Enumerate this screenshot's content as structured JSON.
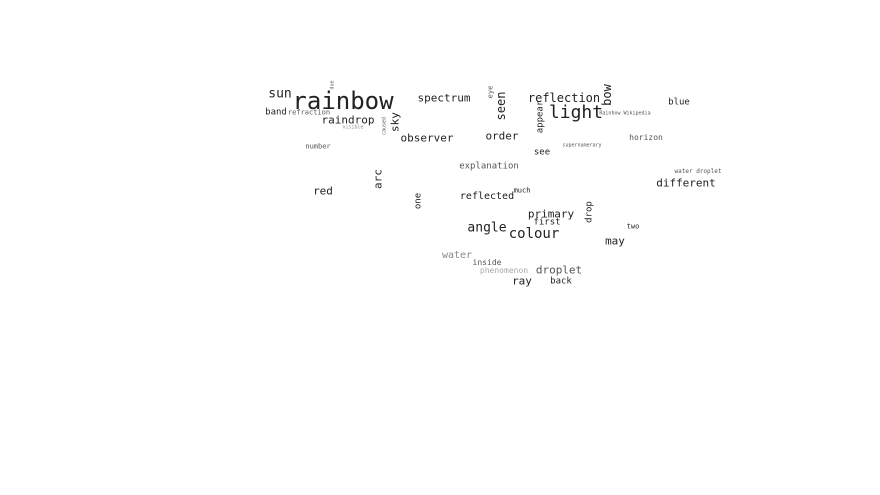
{
  "words": [
    {
      "text": "rainbow",
      "color": "#222222"
    },
    {
      "text": "light",
      "color": "#222222"
    },
    {
      "text": "colour",
      "color": "#222222"
    },
    {
      "text": "sun",
      "color": "#222222"
    },
    {
      "text": "angle",
      "color": "#222222"
    },
    {
      "text": "reflection",
      "color": "#222222"
    },
    {
      "text": "spectrum",
      "color": "#222222"
    },
    {
      "text": "seen",
      "color": "#222222"
    },
    {
      "text": "bow",
      "color": "#222222"
    },
    {
      "text": "raindrop",
      "color": "#222222"
    },
    {
      "text": "sky",
      "color": "#222222"
    },
    {
      "text": "observer",
      "color": "#222222"
    },
    {
      "text": "order",
      "color": "#222222"
    },
    {
      "text": "primary",
      "color": "#222222"
    },
    {
      "text": "red",
      "color": "#222222"
    },
    {
      "text": "arc",
      "color": "#222222"
    },
    {
      "text": "different",
      "color": "#222222"
    },
    {
      "text": "droplet",
      "color": "#555555"
    },
    {
      "text": "ray",
      "color": "#222222"
    },
    {
      "text": "may",
      "color": "#222222"
    },
    {
      "text": "water",
      "color": "#8a8a8a"
    },
    {
      "text": "reflected",
      "color": "#222222"
    },
    {
      "text": "appear",
      "color": "#222222"
    },
    {
      "text": "drop",
      "color": "#222222"
    },
    {
      "text": "explanation",
      "color": "#555555"
    },
    {
      "text": "band",
      "color": "#222222"
    },
    {
      "text": "blue",
      "color": "#222222"
    },
    {
      "text": "see",
      "color": "#222222"
    },
    {
      "text": "first",
      "color": "#222222"
    },
    {
      "text": "back",
      "color": "#222222"
    },
    {
      "text": "one",
      "color": "#222222"
    },
    {
      "text": "horizon",
      "color": "#555555"
    },
    {
      "text": "inside",
      "color": "#555555"
    },
    {
      "text": "much",
      "color": "#222222"
    },
    {
      "text": "number",
      "color": "#555555"
    },
    {
      "text": "refraction",
      "color": "#555555"
    },
    {
      "text": "phenomenon",
      "color": "#aaaaaa"
    },
    {
      "text": "eye",
      "color": "#555555"
    },
    {
      "text": "two",
      "color": "#222222"
    },
    {
      "text": "water droplet",
      "color": "#555555"
    },
    {
      "text": "caused",
      "color": "#555555"
    },
    {
      "text": "visible",
      "color": "#8a8a8a"
    },
    {
      "text": "supernumerary",
      "color": "#555555"
    },
    {
      "text": "Rainbow Wikipedia",
      "color": "#555555"
    },
    {
      "text": "due",
      "color": "#555555"
    }
  ]
}
